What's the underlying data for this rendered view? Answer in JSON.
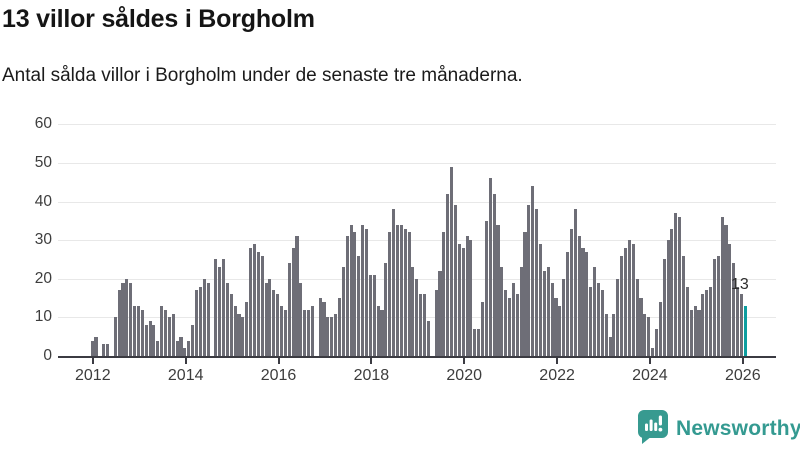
{
  "header": {
    "title": "13 villor såldes i Borgholm",
    "subtitle": "Antal sålda villor i Borgholm under de senaste tre månaderna."
  },
  "chart_data": {
    "type": "bar",
    "title": "13 villor såldes i Borgholm",
    "subtitle": "Antal sålda villor i Borgholm under de senaste tre månaderna.",
    "ylabel": "",
    "xlabel": "",
    "ylim": [
      0,
      60
    ],
    "y_ticks": [
      0,
      10,
      20,
      30,
      40,
      50,
      60
    ],
    "x_tick_labels": [
      "2012",
      "2014",
      "2016",
      "2018",
      "2020",
      "2022",
      "2024",
      "2026"
    ],
    "grid": true,
    "x_start_month": "2012-01",
    "values": [
      4,
      5,
      0,
      3,
      3,
      0,
      10,
      17,
      19,
      20,
      19,
      13,
      13,
      12,
      8,
      9,
      8,
      4,
      13,
      12,
      10,
      11,
      4,
      5,
      2,
      4,
      8,
      17,
      18,
      20,
      19,
      0,
      25,
      23,
      25,
      19,
      16,
      13,
      11,
      10,
      14,
      28,
      29,
      27,
      26,
      19,
      20,
      17,
      16,
      13,
      12,
      24,
      28,
      31,
      19,
      12,
      12,
      13,
      0,
      15,
      14,
      10,
      10,
      11,
      15,
      23,
      31,
      34,
      32,
      26,
      34,
      33,
      21,
      21,
      13,
      12,
      24,
      32,
      38,
      34,
      34,
      33,
      32,
      23,
      20,
      16,
      16,
      9,
      0,
      17,
      22,
      32,
      42,
      49,
      39,
      29,
      28,
      31,
      30,
      7,
      7,
      14,
      35,
      46,
      42,
      34,
      23,
      17,
      15,
      19,
      16,
      23,
      32,
      39,
      44,
      38,
      29,
      22,
      23,
      19,
      15,
      13,
      20,
      27,
      33,
      38,
      31,
      28,
      27,
      18,
      23,
      19,
      17,
      11,
      5,
      11,
      20,
      26,
      28,
      30,
      29,
      20,
      15,
      11,
      10,
      2,
      7,
      14,
      25,
      30,
      33,
      37,
      36,
      26,
      18,
      12,
      13,
      12,
      16,
      17,
      18,
      25,
      26,
      36,
      34,
      29,
      24,
      18,
      16
    ],
    "highlight": {
      "value": 13,
      "label": "13"
    },
    "bar_color": "#6e6e77",
    "highlight_color": "#0d9ea0"
  },
  "branding": {
    "name": "Newsworthy",
    "icon": "newsworthy-speech-bubble-chart-icon",
    "color": "#349a91"
  }
}
